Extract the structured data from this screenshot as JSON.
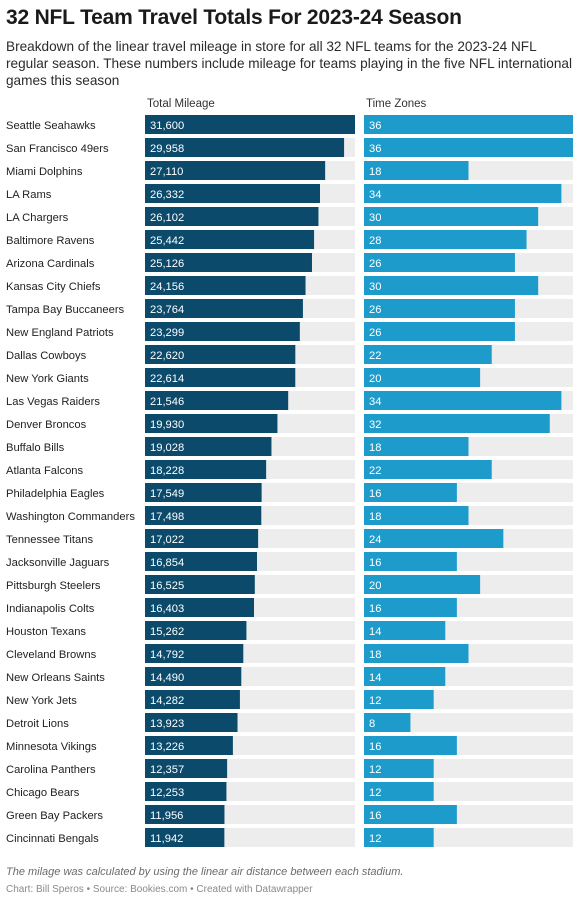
{
  "chart_data": {
    "type": "bar",
    "title": "32 NFL Team Travel Totals For 2023-24 Season",
    "subtitle": "Breakdown of the linear travel mileage in store for all 32 NFL teams for the 2023-24 NFL regular season. These numbers include mileage for teams playing in the five NFL international games this season",
    "categories": [
      "Seattle Seahawks",
      "San Francisco 49ers",
      "Miami Dolphins",
      "LA Rams",
      "LA Chargers",
      "Baltimore Ravens",
      "Arizona Cardinals",
      "Kansas City Chiefs",
      "Tampa Bay Buccaneers",
      "New England Patriots",
      "Dallas Cowboys",
      "New York Giants",
      "Las Vegas Raiders",
      "Denver Broncos",
      "Buffalo Bills",
      "Atlanta Falcons",
      "Philadelphia Eagles",
      "Washington Commanders",
      "Tennessee Titans",
      "Jacksonville Jaguars",
      "Pittsburgh Steelers",
      "Indianapolis Colts",
      "Houston Texans",
      "Cleveland Browns",
      "New Orleans Saints",
      "New York Jets",
      "Detroit Lions",
      "Minnesota Vikings",
      "Carolina Panthers",
      "Chicago Bears",
      "Green Bay Packers",
      "Cincinnati Bengals"
    ],
    "series": [
      {
        "name": "Total Mileage",
        "color": "#0b4a6b",
        "xlim": [
          0,
          31600
        ],
        "values": [
          31600,
          29958,
          27110,
          26332,
          26102,
          25442,
          25126,
          24156,
          23764,
          23299,
          22620,
          22614,
          21546,
          19930,
          19028,
          18228,
          17549,
          17498,
          17022,
          16854,
          16525,
          16403,
          15262,
          14792,
          14490,
          14282,
          13923,
          13226,
          12357,
          12253,
          11956,
          11942
        ],
        "labels": [
          "31,600",
          "29,958",
          "27,110",
          "26,332",
          "26,102",
          "25,442",
          "25,126",
          "24,156",
          "23,764",
          "23,299",
          "22,620",
          "22,614",
          "21,546",
          "19,930",
          "19,028",
          "18,228",
          "17,549",
          "17,498",
          "17,022",
          "16,854",
          "16,525",
          "16,403",
          "15,262",
          "14,792",
          "14,490",
          "14,282",
          "13,923",
          "13,226",
          "12,357",
          "12,253",
          "11,956",
          "11,942"
        ]
      },
      {
        "name": "Time Zones",
        "color": "#1d9ccc",
        "xlim": [
          0,
          36
        ],
        "values": [
          36,
          36,
          18,
          34,
          30,
          28,
          26,
          30,
          26,
          26,
          22,
          20,
          34,
          32,
          18,
          22,
          16,
          18,
          24,
          16,
          20,
          16,
          14,
          18,
          14,
          12,
          8,
          16,
          12,
          12,
          16,
          12
        ],
        "labels": [
          "36",
          "36",
          "18",
          "34",
          "30",
          "28",
          "26",
          "30",
          "26",
          "26",
          "22",
          "20",
          "34",
          "32",
          "18",
          "22",
          "16",
          "18",
          "24",
          "16",
          "20",
          "16",
          "14",
          "18",
          "14",
          "12",
          "8",
          "16",
          "12",
          "12",
          "16",
          "12"
        ]
      }
    ],
    "background_track_color": "#ededed",
    "label_color": "#ffffff",
    "orientation": "horizontal",
    "grid": false,
    "legend": "column headers"
  },
  "notes": "The milage was calculated by using the linear air distance between each stadium.",
  "credits": "Chart: Bill Speros • Source: Bookies.com • Created with Datawrapper"
}
